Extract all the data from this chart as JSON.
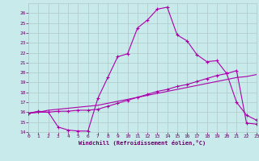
{
  "background_color": "#c8eaea",
  "grid_color": "#b0c8c8",
  "line_color": "#aa00aa",
  "xlabel": "Windchill (Refroidissement éolien,°C)",
  "xlabel_color": "#660066",
  "tick_color": "#660066",
  "ylim": [
    14,
    27
  ],
  "xlim": [
    0,
    23
  ],
  "yticks": [
    14,
    15,
    16,
    17,
    18,
    19,
    20,
    21,
    22,
    23,
    24,
    25,
    26
  ],
  "xticks": [
    0,
    1,
    2,
    3,
    4,
    5,
    6,
    7,
    8,
    9,
    10,
    11,
    12,
    13,
    14,
    15,
    16,
    17,
    18,
    19,
    20,
    21,
    22,
    23
  ],
  "line1_x": [
    0,
    1,
    2,
    3,
    4,
    5,
    6,
    7,
    8,
    9,
    10,
    11,
    12,
    13,
    14,
    15,
    16,
    17,
    18,
    19,
    20,
    21,
    22,
    23
  ],
  "line1_y": [
    15.9,
    16.1,
    16.0,
    14.5,
    14.2,
    14.1,
    14.1,
    17.4,
    19.5,
    21.6,
    21.9,
    24.5,
    25.3,
    26.4,
    26.6,
    23.8,
    23.2,
    21.8,
    21.1,
    21.2,
    19.9,
    17.0,
    15.7,
    15.2
  ],
  "line2_x": [
    0,
    1,
    2,
    3,
    4,
    5,
    6,
    7,
    8,
    9,
    10,
    11,
    12,
    13,
    14,
    15,
    16,
    17,
    18,
    19,
    20,
    21,
    22,
    23
  ],
  "line2_y": [
    15.9,
    16.0,
    16.0,
    16.1,
    16.1,
    16.2,
    16.2,
    16.3,
    16.6,
    16.9,
    17.2,
    17.5,
    17.8,
    18.1,
    18.3,
    18.6,
    18.8,
    19.1,
    19.4,
    19.7,
    19.9,
    20.2,
    14.9,
    14.8
  ],
  "line3_x": [
    0,
    1,
    2,
    3,
    4,
    5,
    6,
    7,
    8,
    9,
    10,
    11,
    12,
    13,
    14,
    15,
    16,
    17,
    18,
    19,
    20,
    21,
    22,
    23
  ],
  "line3_y": [
    15.9,
    16.0,
    16.2,
    16.3,
    16.4,
    16.5,
    16.6,
    16.7,
    16.9,
    17.1,
    17.3,
    17.5,
    17.7,
    17.9,
    18.1,
    18.3,
    18.5,
    18.7,
    18.9,
    19.1,
    19.3,
    19.5,
    19.6,
    19.8
  ]
}
